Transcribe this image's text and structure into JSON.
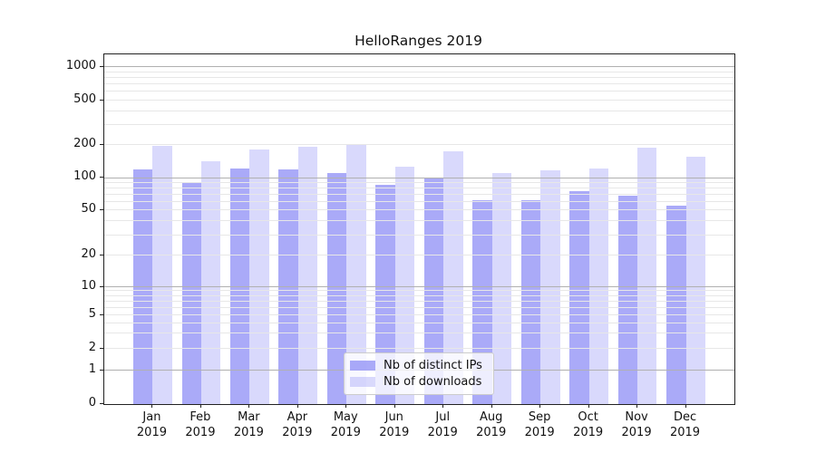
{
  "chart_data": {
    "type": "bar",
    "title": "HelloRanges 2019",
    "categories": [
      "Jan",
      "Feb",
      "Mar",
      "Apr",
      "May",
      "Jun",
      "Jul",
      "Aug",
      "Sep",
      "Oct",
      "Nov",
      "Dec"
    ],
    "category_year": "2019",
    "series": [
      {
        "name": "Nb of distinct IPs",
        "color": "#a9a9f6",
        "fill": "rgba(130,130,245,0.68)",
        "values": [
          120,
          90,
          122,
          120,
          110,
          87,
          100,
          62,
          62,
          75,
          69,
          55
        ]
      },
      {
        "name": "Nb of downloads",
        "color": "#d9d9f7",
        "fill": "rgba(130,130,245,0.30)",
        "values": [
          195,
          141,
          182,
          192,
          203,
          128,
          176,
          110,
          118,
          122,
          190,
          155
        ]
      }
    ],
    "yscale": "symlog",
    "ylim": [
      0,
      1300
    ],
    "ytick_labels": [
      0,
      1,
      2,
      5,
      10,
      20,
      50,
      100,
      200,
      500,
      1000
    ],
    "grid": "horizontal major+minor",
    "legend_position": "lower center",
    "xlabel": "",
    "ylabel": ""
  }
}
